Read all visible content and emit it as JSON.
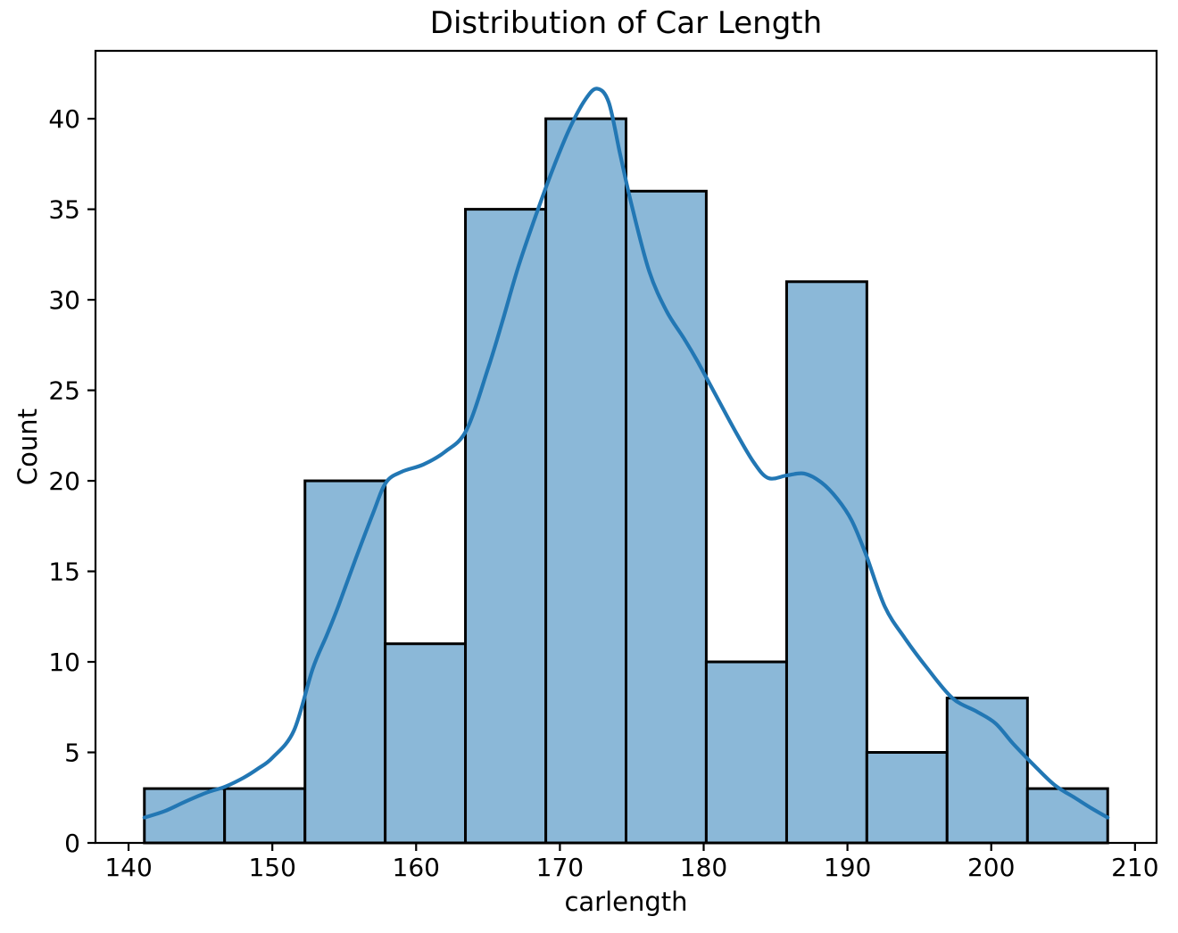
{
  "chart_data": {
    "type": "bar",
    "subtype": "histogram_with_kde",
    "title": "Distribution of Car Length",
    "xlabel": "carlength",
    "ylabel": "Count",
    "legend": "none",
    "grid": false,
    "bins": {
      "edges": [
        141.1,
        146.68,
        152.27,
        157.85,
        163.43,
        169.02,
        174.6,
        180.18,
        185.77,
        191.35,
        196.93,
        202.52,
        208.1
      ],
      "counts": [
        3,
        3,
        20,
        11,
        35,
        40,
        36,
        10,
        31,
        5,
        8,
        3
      ],
      "total_observations": 205
    },
    "kde_curve": {
      "points": [
        [
          141.1,
          1.4
        ],
        [
          142.5,
          1.75
        ],
        [
          144.0,
          2.3
        ],
        [
          145.5,
          2.8
        ],
        [
          146.7,
          3.1
        ],
        [
          148.0,
          3.6
        ],
        [
          149.0,
          4.1
        ],
        [
          150.0,
          4.7
        ],
        [
          151.5,
          6.2
        ],
        [
          152.8,
          9.6
        ],
        [
          153.8,
          11.5
        ],
        [
          154.6,
          13.1
        ],
        [
          155.8,
          15.7
        ],
        [
          157.0,
          18.2
        ],
        [
          157.9,
          19.9
        ],
        [
          159.0,
          20.5
        ],
        [
          160.5,
          20.9
        ],
        [
          162.0,
          21.6
        ],
        [
          163.5,
          22.8
        ],
        [
          165.0,
          26.2
        ],
        [
          166.0,
          28.8
        ],
        [
          167.1,
          31.8
        ],
        [
          168.3,
          34.6
        ],
        [
          169.5,
          37.2
        ],
        [
          170.7,
          39.5
        ],
        [
          171.8,
          41.1
        ],
        [
          172.6,
          41.66
        ],
        [
          173.4,
          40.9
        ],
        [
          174.2,
          38.0
        ],
        [
          175.0,
          35.2
        ],
        [
          176.2,
          31.6
        ],
        [
          177.4,
          29.4
        ],
        [
          178.6,
          27.9
        ],
        [
          179.5,
          26.7
        ],
        [
          181.0,
          24.5
        ],
        [
          182.3,
          22.6
        ],
        [
          183.5,
          21.0
        ],
        [
          184.5,
          20.15
        ],
        [
          185.8,
          20.3
        ],
        [
          187.0,
          20.4
        ],
        [
          188.2,
          19.9
        ],
        [
          189.3,
          19.0
        ],
        [
          190.3,
          17.8
        ],
        [
          191.3,
          15.9
        ],
        [
          192.6,
          13.05
        ],
        [
          194.0,
          11.3
        ],
        [
          195.5,
          9.7
        ],
        [
          197.3,
          8.0
        ],
        [
          199.0,
          7.25
        ],
        [
          200.3,
          6.6
        ],
        [
          201.5,
          5.5
        ],
        [
          202.9,
          4.35
        ],
        [
          204.4,
          3.2
        ],
        [
          205.8,
          2.5
        ],
        [
          207.0,
          1.9
        ],
        [
          208.1,
          1.4
        ]
      ]
    },
    "x_ticks": [
      140,
      150,
      160,
      170,
      180,
      190,
      200,
      210
    ],
    "y_ticks": [
      0,
      5,
      10,
      15,
      20,
      25,
      30,
      35,
      40
    ],
    "xlim": [
      137.7,
      211.5
    ],
    "ylim": [
      0,
      43.75
    ],
    "colors": {
      "bar_fill": "#8bb8d8",
      "bar_edge": "#000000",
      "kde_line": "#2277b4",
      "axis": "#000000",
      "text": "#000000",
      "background": "#ffffff"
    }
  }
}
